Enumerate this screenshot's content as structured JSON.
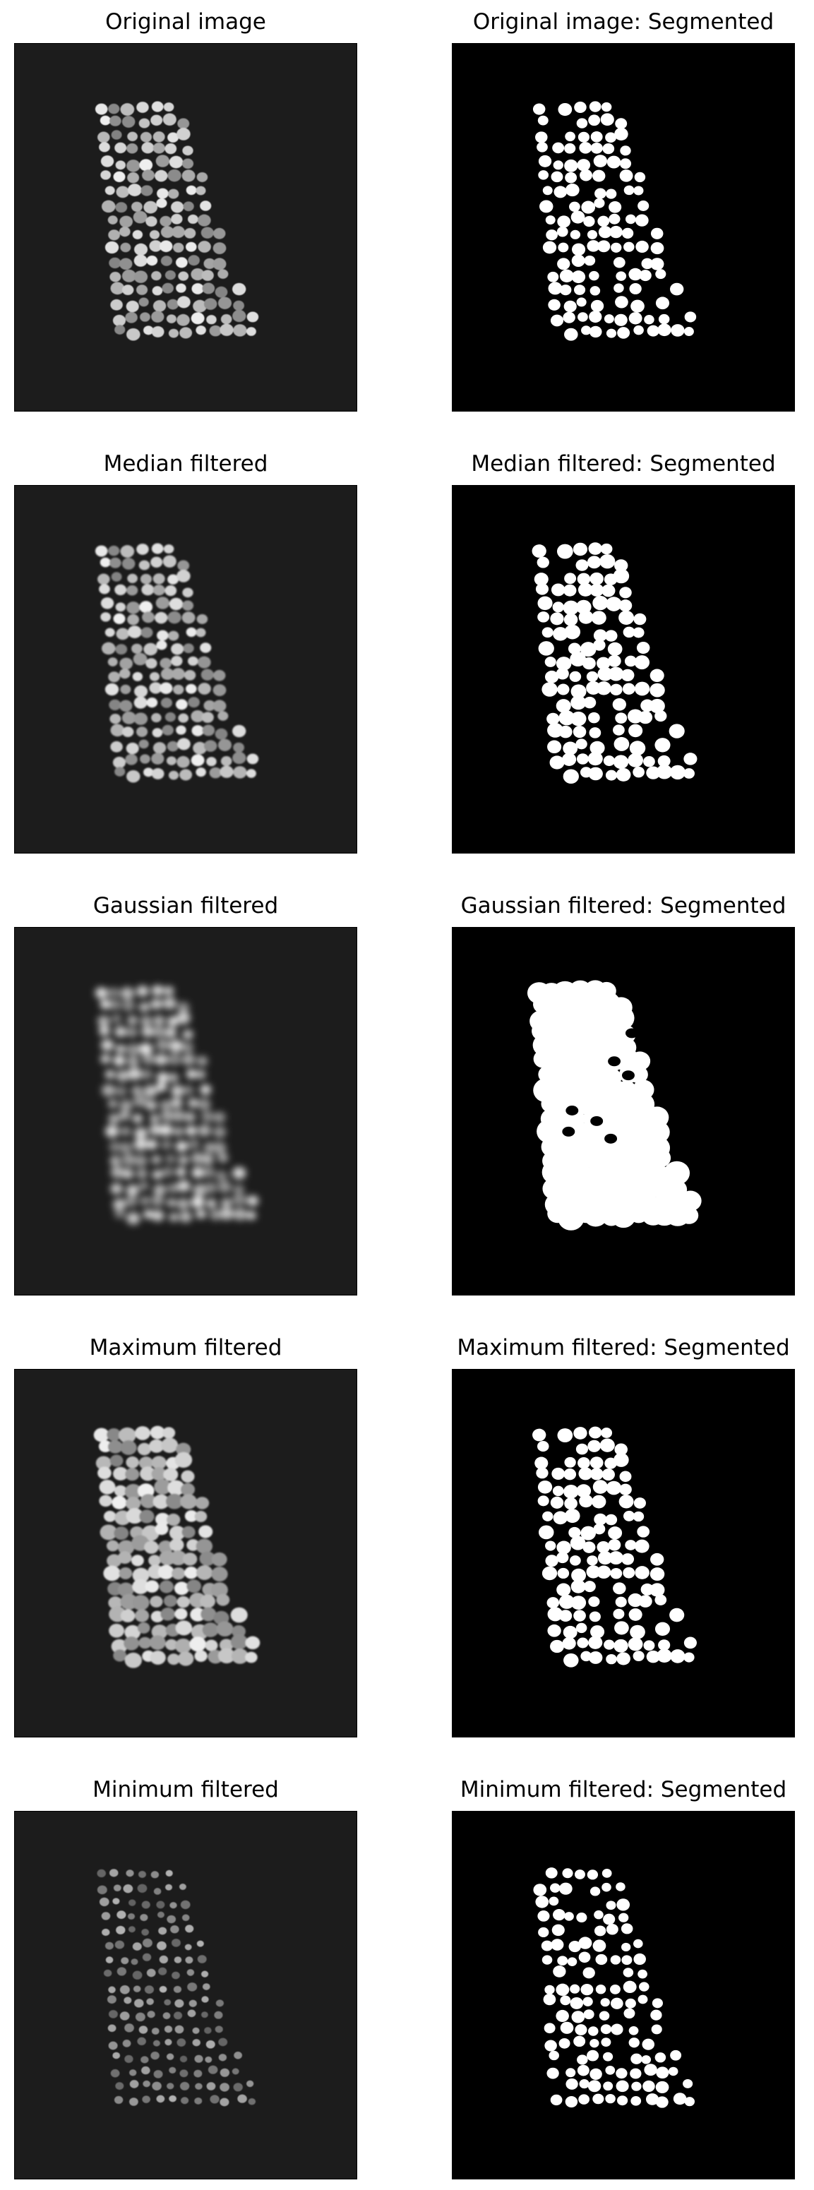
{
  "figure": {
    "panels": [
      {
        "title": "Original image",
        "kind": "raw",
        "variant": "original"
      },
      {
        "title": "Original image: Segmented",
        "kind": "seg",
        "variant": "original"
      },
      {
        "title": "Median filtered",
        "kind": "raw",
        "variant": "median"
      },
      {
        "title": "Median filtered: Segmented",
        "kind": "seg",
        "variant": "median"
      },
      {
        "title": "Gaussian filtered",
        "kind": "raw",
        "variant": "gaussian"
      },
      {
        "title": "Gaussian filtered: Segmented",
        "kind": "seg",
        "variant": "gaussian"
      },
      {
        "title": "Maximum filtered",
        "kind": "raw",
        "variant": "maximum"
      },
      {
        "title": "Maximum filtered: Segmented",
        "kind": "seg",
        "variant": "maximum"
      },
      {
        "title": "Minimum filtered",
        "kind": "raw",
        "variant": "minimum"
      },
      {
        "title": "Minimum filtered: Segmented",
        "kind": "seg",
        "variant": "minimum"
      }
    ],
    "colors": {
      "background": "#ffffff",
      "text": "#000000",
      "raw_background": "#1c1c1c",
      "seg_background": "#000000",
      "seg_foreground": "#ffffff"
    }
  }
}
